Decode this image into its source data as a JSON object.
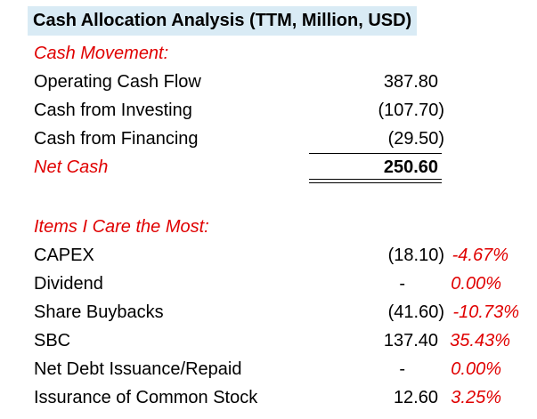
{
  "title": "Cash Allocation Analysis (TTM, Million, USD)",
  "cash_movement": {
    "heading": "Cash Movement:",
    "rows": [
      {
        "label": "Operating Cash Flow",
        "value": "387.80"
      },
      {
        "label": "Cash from Investing",
        "value": "(107.70)"
      },
      {
        "label": "Cash from Financing",
        "value": "(29.50)"
      }
    ],
    "total": {
      "label": "Net Cash",
      "value": "250.60"
    }
  },
  "items": {
    "heading": "Items I Care the Most:",
    "rows": [
      {
        "label": "CAPEX",
        "value": "(18.10)",
        "pct": "-4.67%"
      },
      {
        "label": "Dividend",
        "value": "-",
        "pct": "0.00%"
      },
      {
        "label": "Share Buybacks",
        "value": "(41.60)",
        "pct": "-10.73%"
      },
      {
        "label": "SBC",
        "value": "137.40",
        "pct": "35.43%"
      },
      {
        "label": "Net Debt Issuance/Repaid",
        "value": "-",
        "pct": "0.00%"
      },
      {
        "label": "Issurance of Common Stock",
        "value": "12.60",
        "pct": "3.25%"
      }
    ]
  },
  "colors": {
    "title_background": "#d9ebf5",
    "accent_red": "#e00000"
  }
}
